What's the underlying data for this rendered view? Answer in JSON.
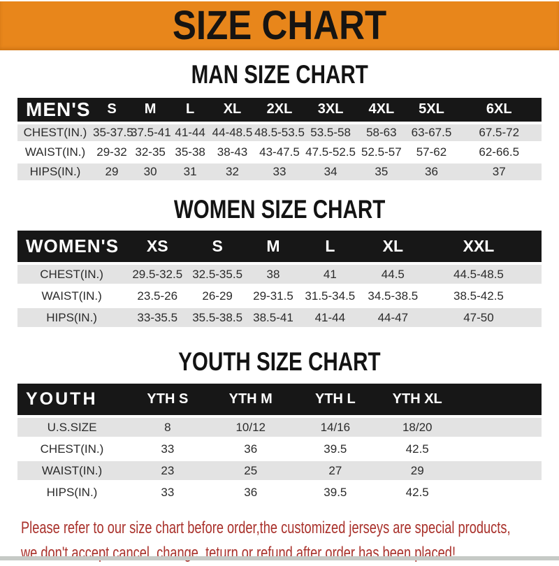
{
  "banner": {
    "title": "SIZE CHART"
  },
  "colors": {
    "banner_orange": "#E8861B",
    "table_header_black": "#171717",
    "row_gray": "#E3E3E3",
    "disclaimer_red": "#A9312B"
  },
  "sections": [
    {
      "heading": "MAN SIZE CHART",
      "table": {
        "corner": "MEN'S",
        "columns": [
          "S",
          "M",
          "L",
          "XL",
          "2XL",
          "3XL",
          "4XL",
          "5XL",
          "6XL"
        ],
        "rows": [
          {
            "label": "CHEST(IN.)",
            "values": [
              "35-37.5",
              "37.5-41",
              "41-44",
              "44-48.5",
              "48.5-53.5",
              "53.5-58",
              "58-63",
              "63-67.5",
              "67.5-72"
            ]
          },
          {
            "label": "WAIST(IN.)",
            "values": [
              "29-32",
              "32-35",
              "35-38",
              "38-43",
              "43-47.5",
              "47.5-52.5",
              "52.5-57",
              "57-62",
              "62-66.5"
            ]
          },
          {
            "label": "HIPS(IN.)",
            "values": [
              "29",
              "30",
              "31",
              "32",
              "33",
              "34",
              "35",
              "36",
              "37"
            ]
          }
        ]
      }
    },
    {
      "heading": "WOMEN SIZE CHART",
      "table": {
        "corner": "WOMEN'S",
        "columns": [
          "XS",
          "S",
          "M",
          "L",
          "XL",
          "XXL"
        ],
        "rows": [
          {
            "label": "CHEST(IN.)",
            "values": [
              "29.5-32.5",
              "32.5-35.5",
              "38",
              "41",
              "44.5",
              "44.5-48.5"
            ]
          },
          {
            "label": "WAIST(IN.)",
            "values": [
              "23.5-26",
              "26-29",
              "29-31.5",
              "31.5-34.5",
              "34.5-38.5",
              "38.5-42.5"
            ]
          },
          {
            "label": "HIPS(IN.)",
            "values": [
              "33-35.5",
              "35.5-38.5",
              "38.5-41",
              "41-44",
              "44-47",
              "47-50"
            ]
          }
        ]
      }
    },
    {
      "heading": "YOUTH SIZE CHART",
      "table": {
        "corner": "YOUTH",
        "columns": [
          "YTH S",
          "YTH M",
          "YTH L",
          "YTH XL"
        ],
        "rows": [
          {
            "label": "U.S.SIZE",
            "values": [
              "8",
              "10/12",
              "14/16",
              "18/20"
            ]
          },
          {
            "label": "CHEST(IN.)",
            "values": [
              "33",
              "36",
              "39.5",
              "42.5"
            ]
          },
          {
            "label": "WAIST(IN.)",
            "values": [
              "23",
              "25",
              "27",
              "29"
            ]
          },
          {
            "label": "HIPS(IN.)",
            "values": [
              "33",
              "36",
              "39.5",
              "42.5"
            ]
          }
        ]
      }
    }
  ],
  "disclaimer": {
    "line1": "Please refer to our size chart before order,the customized jerseys are special products,",
    "line2": "we don't accept cancel, change, teturn or refund after order has been placed!"
  }
}
